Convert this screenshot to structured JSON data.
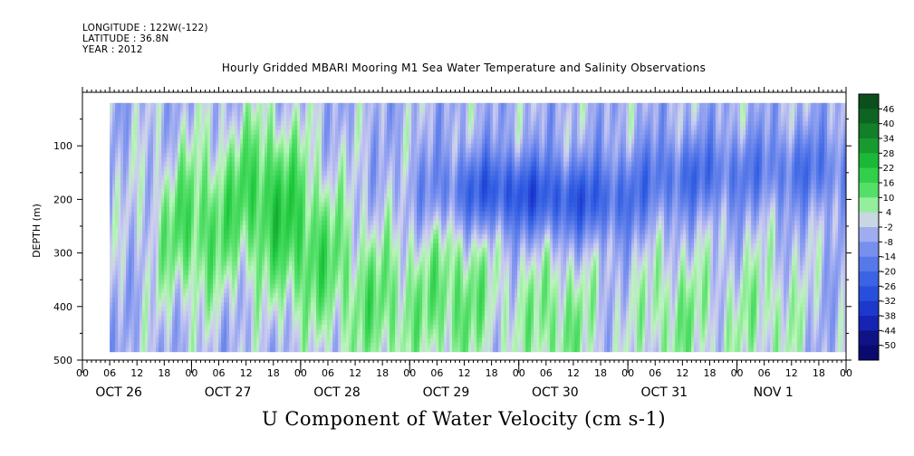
{
  "header": {
    "longitude": "LONGITUDE : 122W(-122)",
    "latitude": "LATITUDE : 36.8N",
    "year": "YEAR : 2012"
  },
  "chart_data": {
    "type": "heatmap",
    "title": "Hourly Gridded MBARI Mooring M1 Sea Water Temperature and Salinity Observations",
    "bottom_title": "U Component of Water Velocity (cm s-1)",
    "ylabel": "DEPTH (m)",
    "xlabel": "",
    "ylim": [
      500,
      20
    ],
    "y_ticks": [
      100,
      200,
      300,
      400,
      500
    ],
    "x_hour_labels": [
      "00",
      "06",
      "12",
      "18",
      "00",
      "06",
      "12",
      "18",
      "00",
      "06",
      "12",
      "18",
      "00",
      "06",
      "12",
      "18",
      "00",
      "06",
      "12",
      "18",
      "00",
      "06",
      "12",
      "18",
      "00",
      "06",
      "12",
      "18",
      "00"
    ],
    "x_date_labels": [
      "OCT 26",
      "OCT 27",
      "OCT 28",
      "OCT 29",
      "OCT 30",
      "OCT 31",
      "NOV 1"
    ],
    "x_range_hours": [
      0,
      168
    ],
    "data_start_hour": 6,
    "data_end_hour": 168,
    "data_depth_range": [
      20,
      485
    ],
    "colorbar_labels": [
      "46",
      "40",
      "34",
      "28",
      "22",
      "16",
      "10",
      "4",
      "-2",
      "-8",
      "-14",
      "-20",
      "-26",
      "-32",
      "-38",
      "-44",
      "-50"
    ],
    "colorbar_range": [
      -50,
      50
    ],
    "colors": {
      "strong_positive": "#1a7a2e",
      "positive": "#22dd44",
      "light_positive": "#b8f5b8",
      "near_zero": "#c8c8f0",
      "negative": "#8a96ee",
      "strong_negative": "#2a4ae0",
      "deep_negative": "#0a0a80"
    },
    "field_description": {
      "positive_regions": [
        {
          "hour": 24,
          "depth": 250,
          "value": 18
        },
        {
          "hour": 40,
          "depth": 180,
          "value": 20
        },
        {
          "hour": 50,
          "depth": 300,
          "value": 16
        },
        {
          "hour": 65,
          "depth": 400,
          "value": 14
        },
        {
          "hour": 82,
          "depth": 380,
          "value": 16
        },
        {
          "hour": 104,
          "depth": 430,
          "value": 14
        },
        {
          "hour": 130,
          "depth": 420,
          "value": 12
        },
        {
          "hour": 150,
          "depth": 420,
          "value": 10
        }
      ],
      "negative_regions": [
        {
          "hour": 90,
          "depth": 180,
          "value": -20
        },
        {
          "hour": 110,
          "depth": 200,
          "value": -18
        },
        {
          "hour": 134,
          "depth": 150,
          "value": -14
        },
        {
          "hour": 160,
          "depth": 140,
          "value": -12
        }
      ]
    }
  }
}
